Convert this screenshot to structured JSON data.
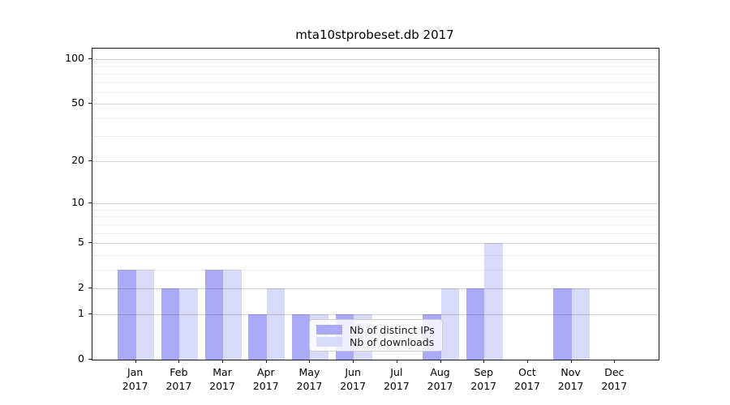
{
  "title": "mta10stprobeset.db 2017",
  "chart_data": {
    "type": "bar",
    "title": "mta10stprobeset.db 2017",
    "categories": [
      "Jan",
      "Feb",
      "Mar",
      "Apr",
      "May",
      "Jun",
      "Jul",
      "Aug",
      "Sep",
      "Oct",
      "Nov",
      "Dec"
    ],
    "x_year_label": "2017",
    "series": [
      {
        "name": "Nb of distinct IPs",
        "color": "#a9a9f6",
        "values": [
          3,
          2,
          3,
          1,
          1,
          1,
          0,
          1,
          2,
          0,
          2,
          0
        ]
      },
      {
        "name": "Nb of downloads",
        "color": "#d9d9f8",
        "values": [
          3,
          2,
          3,
          2,
          1,
          1,
          0,
          2,
          5,
          0,
          2,
          0
        ]
      }
    ],
    "xlabel": "",
    "ylabel": "",
    "yscale": "log(1+y)",
    "ylim": [
      0,
      118
    ],
    "y_major_ticks": [
      0,
      1,
      2,
      5,
      10,
      20,
      50,
      100
    ],
    "y_minor_ticks": [
      3,
      4,
      6,
      7,
      8,
      9,
      30,
      40,
      60,
      70,
      80,
      90
    ],
    "grid": true,
    "legend_position": "inside lower center"
  }
}
